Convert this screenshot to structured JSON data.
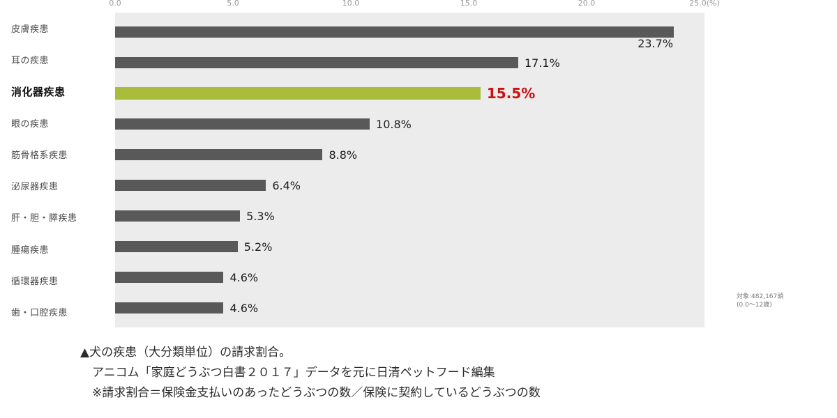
{
  "chart_data": {
    "type": "bar",
    "orientation": "horizontal",
    "title": "",
    "xlabel": "(%)",
    "ylabel": "",
    "xlim": [
      0,
      25
    ],
    "x_ticks": [
      "0.0",
      "5.0",
      "10.0",
      "15.0",
      "20.0",
      "25.0(%)"
    ],
    "categories": [
      "皮膚疾患",
      "耳の疾患",
      "消化器疾患",
      "眼の疾患",
      "筋骨格系疾患",
      "泌尿器疾患",
      "肝・胆・膵疾患",
      "腫瘍疾患",
      "循環器疾患",
      "歯・口腔疾患"
    ],
    "values": [
      23.7,
      17.1,
      15.5,
      10.8,
      8.8,
      6.4,
      5.3,
      5.2,
      4.6,
      4.6
    ],
    "value_labels": [
      "23.7%",
      "17.1%",
      "15.5%",
      "10.8%",
      "8.8%",
      "6.4%",
      "5.3%",
      "5.2%",
      "4.6%",
      "4.6%"
    ],
    "highlight_index": 2,
    "legend": "none",
    "grid": "off",
    "colors": {
      "bar": "#595959",
      "highlight_bar": "#a9bd3b",
      "highlight_value_label": "#cc1111",
      "plot_background": "#ececec"
    }
  },
  "note": {
    "line1": "対象:482,167頭",
    "line2": "(0.0〜12歳)"
  },
  "caption": {
    "line1": "▲犬の疾患（大分類単位）の請求割合。",
    "line2": "アニコム「家庭どうぶつ白書２０１７」データを元に日清ペットフード編集",
    "line3": "※請求割合＝保険金支払いのあったどうぶつの数／保険に契約しているどうぶつの数"
  }
}
